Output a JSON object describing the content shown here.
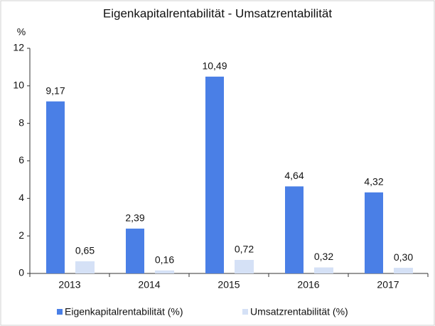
{
  "chart_data": {
    "type": "bar",
    "title": "Eigenkapitalrentabilität - Umsatzrentabilität",
    "y_label": "%",
    "categories": [
      "2013",
      "2014",
      "2015",
      "2016",
      "2017"
    ],
    "series": [
      {
        "name": "Eigenkapitalrentabilität (%)",
        "color": "#4a7fe6",
        "values": [
          9.17,
          2.39,
          10.49,
          4.64,
          4.32
        ],
        "value_labels": [
          "9,17",
          "2,39",
          "10,49",
          "4,64",
          "4,32"
        ]
      },
      {
        "name": "Umsatzrentabilität (%)",
        "color": "#d5e1f6",
        "values": [
          0.65,
          0.16,
          0.72,
          0.32,
          0.3
        ],
        "value_labels": [
          "0,65",
          "0,16",
          "0,72",
          "0,32",
          "0,30"
        ]
      }
    ],
    "ylim": [
      0,
      12
    ],
    "yticks": [
      0,
      2,
      4,
      6,
      8,
      10,
      12
    ],
    "grid": false,
    "legend": "bottom"
  }
}
